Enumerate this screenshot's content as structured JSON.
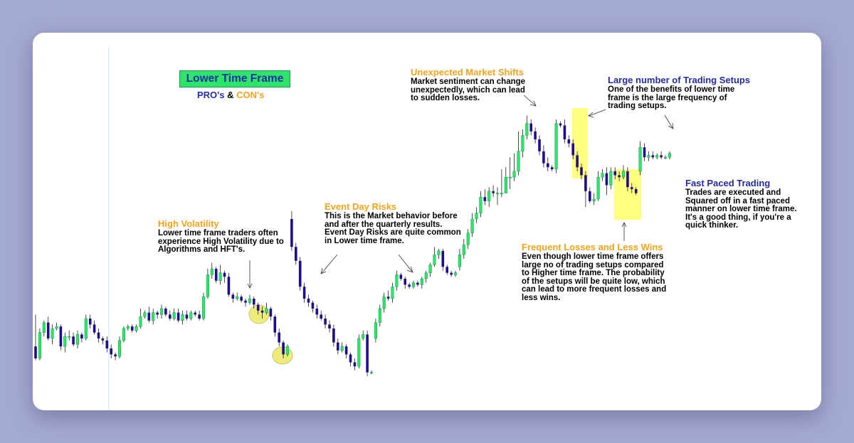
{
  "chart_data": {
    "type": "candlestick",
    "title": "Lower Time Frame",
    "subtitle": {
      "pros": "PRO's",
      "amp": "&",
      "cons": "CON's"
    },
    "price_range": [
      0,
      100
    ],
    "grid": false,
    "candles": [
      [
        6,
        0,
        22,
        -1
      ],
      [
        0,
        13,
        15,
        -1
      ],
      [
        13,
        18,
        19,
        11
      ],
      [
        18,
        10,
        21,
        9
      ],
      [
        10,
        15,
        17,
        7
      ],
      [
        15,
        16,
        18,
        14
      ],
      [
        16,
        6,
        17,
        4
      ],
      [
        6,
        11,
        13,
        3
      ],
      [
        11,
        11,
        14,
        9
      ],
      [
        11,
        7,
        13,
        6
      ],
      [
        7,
        12,
        14,
        5
      ],
      [
        12,
        10,
        13,
        8
      ],
      [
        10,
        20,
        22,
        9
      ],
      [
        20,
        17,
        22,
        15
      ],
      [
        17,
        13,
        19,
        12
      ],
      [
        13,
        10,
        15,
        8
      ],
      [
        10,
        9,
        11,
        7
      ],
      [
        9,
        5,
        11,
        3
      ],
      [
        5,
        2,
        7,
        0
      ],
      [
        2,
        1,
        3,
        -1
      ],
      [
        1,
        9,
        11,
        0
      ],
      [
        9,
        15,
        16,
        8
      ],
      [
        15,
        16,
        17,
        14
      ],
      [
        16,
        14,
        17,
        13
      ],
      [
        14,
        16,
        17,
        13
      ],
      [
        16,
        21,
        25,
        15
      ],
      [
        21,
        23,
        24,
        20
      ],
      [
        23,
        19,
        26,
        18
      ],
      [
        19,
        23,
        25,
        17
      ],
      [
        23,
        22,
        24,
        20
      ],
      [
        22,
        25,
        27,
        20
      ],
      [
        25,
        22,
        26,
        21
      ],
      [
        22,
        20,
        24,
        19
      ],
      [
        20,
        23,
        25,
        19
      ],
      [
        23,
        19,
        25,
        18
      ],
      [
        19,
        22,
        24,
        17
      ],
      [
        22,
        20,
        24,
        19
      ],
      [
        20,
        23,
        24,
        19
      ],
      [
        23,
        22,
        24,
        21
      ],
      [
        22,
        20,
        24,
        19
      ],
      [
        20,
        31,
        33,
        19
      ],
      [
        31,
        42,
        45,
        30
      ],
      [
        42,
        45,
        48,
        40
      ],
      [
        45,
        39,
        46,
        38
      ],
      [
        39,
        43,
        47,
        37
      ],
      [
        43,
        41,
        44,
        38
      ],
      [
        41,
        32,
        43,
        31
      ],
      [
        32,
        30,
        33,
        28
      ],
      [
        30,
        31,
        33,
        29
      ],
      [
        31,
        29,
        32,
        28
      ],
      [
        29,
        28,
        30,
        26
      ],
      [
        28,
        30,
        32,
        27
      ],
      [
        30,
        27,
        31,
        25
      ],
      [
        27,
        24,
        28,
        22
      ],
      [
        24,
        23,
        26,
        20
      ],
      [
        23,
        25,
        28,
        22
      ],
      [
        25,
        21,
        26,
        19
      ],
      [
        21,
        13,
        22,
        11
      ],
      [
        13,
        8,
        15,
        6
      ],
      [
        8,
        2,
        9,
        0
      ],
      [
        2,
        6,
        7,
        1
      ],
      [
        70,
        56,
        74,
        54
      ],
      [
        56,
        49,
        58,
        47
      ],
      [
        49,
        36,
        51,
        34
      ],
      [
        36,
        30,
        38,
        28
      ],
      [
        30,
        28,
        32,
        26
      ],
      [
        28,
        25,
        29,
        23
      ],
      [
        25,
        22,
        27,
        20
      ],
      [
        22,
        20,
        24,
        19
      ],
      [
        20,
        17,
        22,
        15
      ],
      [
        17,
        15,
        19,
        13
      ],
      [
        15,
        8,
        17,
        6
      ],
      [
        8,
        4,
        10,
        2
      ],
      [
        4,
        6,
        8,
        3
      ],
      [
        6,
        2,
        7,
        0
      ],
      [
        2,
        -2,
        3,
        -4
      ],
      [
        -2,
        -4,
        0,
        -6
      ],
      [
        -4,
        10,
        12,
        -5
      ],
      [
        10,
        12,
        14,
        9
      ],
      [
        12,
        -7,
        14,
        -9
      ],
      [
        -7,
        -7,
        -6,
        -8
      ],
      [
        10,
        18,
        20,
        8
      ],
      [
        18,
        25,
        27,
        16
      ],
      [
        25,
        31,
        33,
        23
      ],
      [
        31,
        30,
        34,
        29
      ],
      [
        30,
        36,
        38,
        28
      ],
      [
        36,
        42,
        44,
        34
      ],
      [
        42,
        40,
        43,
        39
      ],
      [
        40,
        37,
        41,
        35
      ],
      [
        37,
        36,
        38,
        35
      ],
      [
        36,
        38,
        39,
        35
      ],
      [
        38,
        37,
        39,
        36
      ],
      [
        37,
        40,
        41,
        35
      ],
      [
        40,
        43,
        44,
        38
      ],
      [
        43,
        47,
        48,
        41
      ],
      [
        47,
        52,
        56,
        46
      ],
      [
        52,
        54,
        55,
        50
      ],
      [
        54,
        46,
        55,
        44
      ],
      [
        46,
        43,
        47,
        42
      ],
      [
        43,
        42,
        44,
        41
      ],
      [
        42,
        43,
        44,
        41
      ],
      [
        46,
        52,
        55,
        44
      ],
      [
        52,
        57,
        60,
        50
      ],
      [
        57,
        63,
        65,
        55
      ],
      [
        63,
        70,
        73,
        61
      ],
      [
        70,
        73,
        76,
        68
      ],
      [
        73,
        81,
        84,
        71
      ],
      [
        81,
        79,
        85,
        77
      ],
      [
        79,
        84,
        86,
        76
      ],
      [
        84,
        83,
        87,
        81
      ],
      [
        83,
        83,
        86,
        77
      ],
      [
        83,
        83,
        95,
        81
      ],
      [
        83,
        91,
        96,
        89
      ],
      [
        91,
        91,
        101,
        85
      ],
      [
        91,
        94,
        103,
        89
      ],
      [
        94,
        104,
        114,
        92
      ],
      [
        104,
        112,
        115,
        101
      ],
      [
        112,
        118,
        122,
        110
      ],
      [
        118,
        114,
        120,
        112
      ],
      [
        114,
        110,
        116,
        108
      ],
      [
        110,
        104,
        112,
        102
      ],
      [
        104,
        98,
        107,
        96
      ],
      [
        98,
        96,
        101,
        94
      ],
      [
        96,
        95,
        97,
        94
      ],
      [
        95,
        118,
        120,
        93
      ],
      [
        118,
        117,
        119,
        116
      ],
      [
        117,
        110,
        120,
        108
      ],
      [
        110,
        108,
        112,
        106
      ],
      [
        108,
        102,
        110,
        100
      ],
      [
        102,
        96,
        104,
        94
      ],
      [
        96,
        92,
        98,
        90
      ],
      [
        92,
        84,
        94,
        76
      ],
      [
        84,
        79,
        86,
        78
      ],
      [
        79,
        80,
        83,
        77
      ],
      [
        80,
        91,
        94,
        79
      ],
      [
        91,
        93,
        95,
        89
      ],
      [
        93,
        87,
        96,
        82
      ],
      [
        87,
        94,
        96,
        85
      ],
      [
        94,
        92,
        96,
        90
      ],
      [
        92,
        91,
        94,
        89
      ],
      [
        91,
        94,
        97,
        90
      ],
      [
        94,
        86,
        96,
        84
      ],
      [
        86,
        85,
        88,
        83
      ],
      [
        85,
        83,
        86,
        82
      ],
      [
        94,
        106,
        109,
        92
      ],
      [
        106,
        101,
        108,
        99
      ],
      [
        101,
        102,
        104,
        99
      ],
      [
        102,
        101,
        104,
        100
      ],
      [
        101,
        102,
        103,
        100
      ],
      [
        102,
        101,
        104,
        100
      ],
      [
        101,
        101,
        102,
        100
      ],
      [
        101,
        103,
        104,
        100
      ]
    ],
    "markers": [
      {
        "shape": "ellipse",
        "color": "#ecec7c",
        "label": "volatility-circle"
      },
      {
        "shape": "ellipse",
        "color": "#ecec7c",
        "label": "volatility-circle"
      },
      {
        "shape": "rect",
        "color": "#ffff80",
        "label": "setup-highlight"
      },
      {
        "shape": "rect",
        "color": "#ffff80",
        "label": "loss-highlight"
      }
    ],
    "colors": {
      "bull": "#2ee56a",
      "bear": "#230a8c",
      "wick": "#000000",
      "bull_border": "#11a04a"
    }
  },
  "annotations": {
    "high_volatility": {
      "heading": "High Volatility",
      "body": "Lower time frame traders often\nexperience High Volatility due to\nAlgorithms and HFT's."
    },
    "event_day": {
      "heading": "Event Day Risks",
      "body": "This is the Market behavior before\nand after the quarterly results.\nEvent Day Risks are quite common\nin Lower time frame."
    },
    "market_shifts": {
      "heading": "Unexpected Market Shifts",
      "body": "Market sentiment can change\nunexpectedly, which can lead\nto sudden losses."
    },
    "trading_setups": {
      "heading": "Large number of Trading Setups",
      "body": "One of the benefits of lower time\nframe is the large frequency of\ntrading setups."
    },
    "fast_paced": {
      "heading": "Fast Paced Trading",
      "body": "Trades are executed and\nSquared off in a fast paced\nmanner on lower time frame.\nIt's a good thing, if you're a\nquick thinker."
    },
    "frequent_losses": {
      "heading": "Frequent Losses and Less Wins",
      "body": "Even though lower time frame offers\nlarge no of trading setups compared\nto Higher time frame. The probability\nof the setups will be quite low, which\ncan lead to more frequent losses and\nless wins."
    }
  }
}
